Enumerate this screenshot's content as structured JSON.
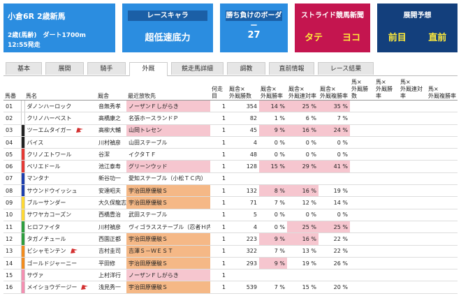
{
  "header": {
    "race": {
      "title": "小倉6R 2歳新馬",
      "condition": "2歳(馬齢)　ダート1700m",
      "start": "12:55発走"
    },
    "cards": [
      {
        "label": "レースキャラ",
        "values": [
          "超低速底力"
        ]
      },
      {
        "label": "勝ち負けのボーダー",
        "values": [
          "27"
        ]
      },
      {
        "label": "ストライド競馬新聞",
        "values": [
          "タテ",
          "ヨコ"
        ]
      },
      {
        "label": "展開予想",
        "values": [
          "前目",
          "直前"
        ]
      }
    ]
  },
  "tabs": [
    "基本",
    "展開",
    "騎手",
    "外厩",
    "競走馬詳細",
    "調教",
    "直前情報",
    "レース結果"
  ],
  "table": {
    "header": [
      [
        "馬番"
      ],
      [
        "馬名"
      ],
      [
        "厩舎"
      ],
      [
        "最近放牧先"
      ],
      [
        "何走目"
      ],
      [
        "厩舎×",
        "外厩勝数"
      ],
      [
        "厩舎×",
        "外厩勝率"
      ],
      [
        "厩舎×",
        "外厩連対率"
      ],
      [
        "厩舎×",
        "外厩複勝率"
      ],
      [
        "馬×",
        "外厩勝数"
      ],
      [
        "馬×",
        "外厩勝率"
      ],
      [
        "馬×",
        "外厩連対率"
      ],
      [
        "馬×",
        "外厩複勝率"
      ]
    ],
    "rows": [
      [
        "01",
        "ダノンハーロック",
        "音無秀孝",
        "ノーザンＦしがらき",
        1,
        354,
        "14 %",
        "25 %",
        "35 %"
      ],
      [
        "02",
        "クリノハーベスト",
        "高橋康之",
        "名張ホースランドＰ",
        1,
        82,
        "1 %",
        "6 %",
        "7 %"
      ],
      [
        "03",
        "ツーエムタイガー",
        "高柳大輔",
        "山岡トレセン",
        1,
        45,
        "9 %",
        "16 %",
        "24 %"
      ],
      [
        "04",
        "バイス",
        "川村禎彦",
        "山田ステーブル",
        1,
        4,
        "0 %",
        "0 %",
        "0 %"
      ],
      [
        "05",
        "クリノエトワール",
        "谷潔",
        "イクタＴＦ",
        1,
        48,
        "0 %",
        "0 %",
        "0 %"
      ],
      [
        "06",
        "ベリエドール",
        "池江泰寿",
        "グリーンウッド",
        1,
        128,
        "15 %",
        "29 %",
        "41 %"
      ],
      [
        "07",
        "マンタナ",
        "新谷功一",
        "愛知ステーブル（小松ＴＣ内）",
        1
      ],
      [
        "08",
        "サウンドウイッシュ",
        "安達昭夫",
        "宇治田原優駿Ｓ",
        1,
        132,
        "8 %",
        "16 %",
        "19 %"
      ],
      [
        "09",
        "ブルーサンダー",
        "大久保龍志",
        "宇治田原優駿Ｓ",
        1,
        71,
        "7 %",
        "12 %",
        "14 %"
      ],
      [
        "10",
        "サワヤカコーズン",
        "西橋豊治",
        "武田ステーブル",
        1,
        5,
        "0 %",
        "0 %",
        "0 %"
      ],
      [
        "11",
        "ヒロファイタ",
        "川村禎彦",
        "ヴィゴラスステーブル（忍者Ｈ内）",
        1,
        4,
        "0 %",
        "25 %",
        "25 %"
      ],
      [
        "12",
        "タガノチュール",
        "西園正都",
        "宇治田原優駿Ｓ",
        1,
        223,
        "9 %",
        "16 %",
        "22 %"
      ],
      [
        "13",
        "ビシャモンテン",
        "吉村圭司",
        "吉澤Ｓ－ＷＥＳＴ",
        1,
        322,
        "7 %",
        "13 %",
        "22 %"
      ],
      [
        "14",
        "ゴールドジャーニー",
        "平田修",
        "宇治田原優駿Ｓ",
        1,
        293,
        "9 %",
        "19 %",
        "26 %"
      ],
      [
        "15",
        "サヴァ",
        "上村洋行",
        "ノーザンＦしがらき",
        1
      ],
      [
        "16",
        "メイショウデージー",
        "浅見秀一",
        "宇治田原優駿Ｓ",
        1,
        539,
        "7 %",
        "15 %",
        "20 %"
      ]
    ]
  }
}
